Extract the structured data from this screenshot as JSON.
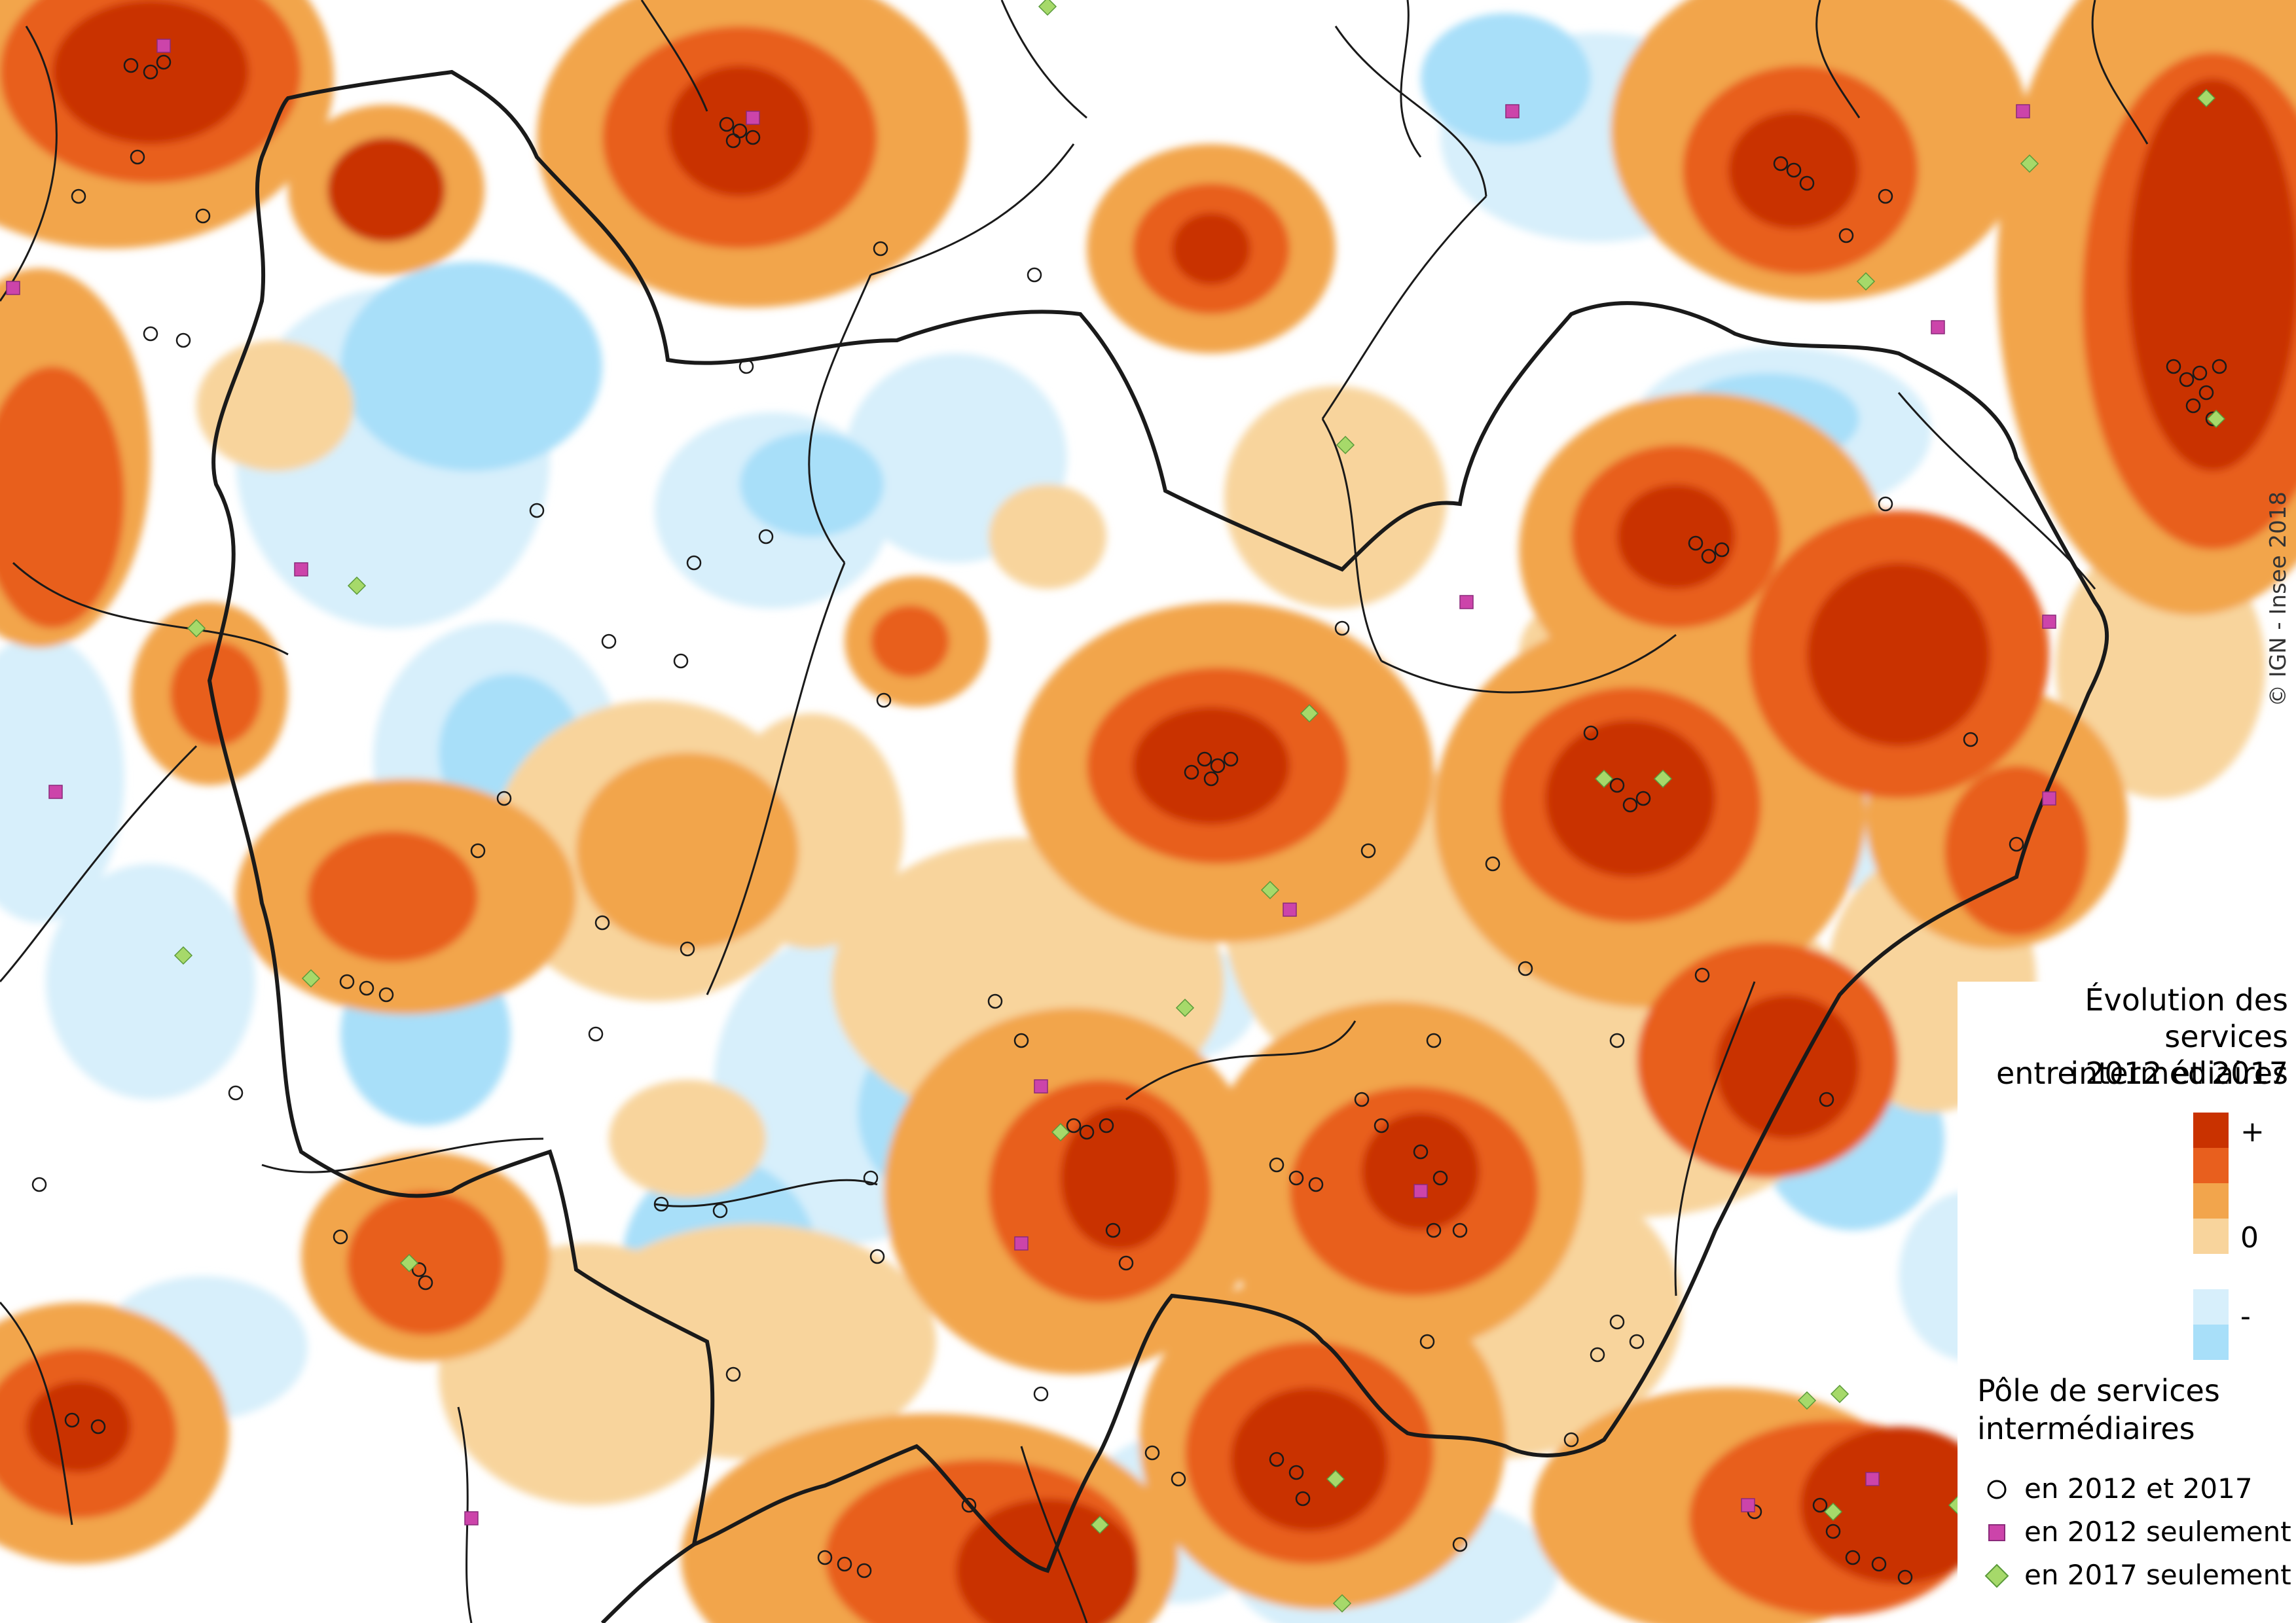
{
  "legend": {
    "title_lines": [
      "Évolution des",
      "services intermédiaires",
      "entre 2012 et 2017"
    ],
    "scale_plus": "+",
    "scale_zero": "0",
    "scale_minus": "-",
    "scale_colors": [
      "#c93200",
      "#e85f1e",
      "#f2a54c",
      "#f8d49c",
      "#ffffff",
      "#d7effb",
      "#a8dff9"
    ],
    "poles_title_lines": [
      "Pôle de services",
      "intermédiaires"
    ],
    "poles": [
      {
        "symbol": "circle",
        "label": "en 2012 et 2017"
      },
      {
        "symbol": "square",
        "label": "en 2012 seulement",
        "color": "#cc44aa"
      },
      {
        "symbol": "diamond",
        "label": "en 2017 seulement",
        "color": "#a6d96a"
      }
    ]
  },
  "copyright": "© IGN - Insee 2018"
}
